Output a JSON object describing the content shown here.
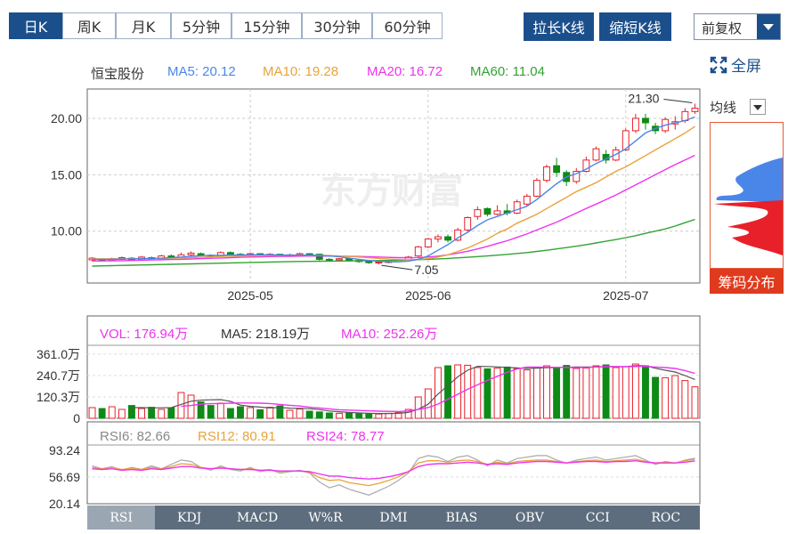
{
  "toolbar": {
    "periods": [
      "日K",
      "周K",
      "月K",
      "5分钟",
      "15分钟",
      "30分钟",
      "60分钟"
    ],
    "active_period": "日K",
    "stretch_label": "拉长K线",
    "shrink_label": "缩短K线",
    "adjust_selected": "前复权",
    "fullscreen_label": "全屏"
  },
  "legend": {
    "name": "恒宝股份",
    "ma5": "MA5: 20.12",
    "ma10": "MA10: 19.28",
    "ma20": "MA20: 16.72",
    "ma60": "MA60: 11.04"
  },
  "side": {
    "avg_line_label": "均线",
    "chip_button_label": "筹码分布"
  },
  "colors": {
    "up": "#e8202a",
    "down": "#0e8a16",
    "ma5": "#4a86e8",
    "ma10": "#e8a33a",
    "ma20": "#ee33ee",
    "ma60": "#33a333",
    "brand": "#1b4f8c"
  },
  "chart_data": [
    {
      "type": "candlestick",
      "y_ticks": [
        "20.00",
        "15.00",
        "10.00"
      ],
      "y_tick_values": [
        20,
        15,
        10
      ],
      "ylim": [
        5.4,
        22.6
      ],
      "x_ticks": [
        "2025-05",
        "2025-06",
        "2025-07"
      ],
      "x_tick_index": [
        16,
        34,
        54
      ],
      "annotations": {
        "high_label": "21.30",
        "high_index": 61,
        "low_label": "7.05",
        "low_index": 29
      },
      "candles": [
        [
          7.45,
          7.6,
          7.35,
          7.7
        ],
        [
          7.5,
          7.4,
          7.3,
          7.6
        ],
        [
          7.4,
          7.55,
          7.35,
          7.65
        ],
        [
          7.5,
          7.65,
          7.45,
          7.75
        ],
        [
          7.6,
          7.45,
          7.4,
          7.7
        ],
        [
          7.45,
          7.7,
          7.4,
          7.8
        ],
        [
          7.65,
          7.55,
          7.5,
          7.75
        ],
        [
          7.55,
          7.8,
          7.5,
          7.9
        ],
        [
          7.8,
          7.65,
          7.6,
          7.95
        ],
        [
          7.65,
          7.9,
          7.6,
          8.1
        ],
        [
          7.9,
          8.05,
          7.8,
          8.2
        ],
        [
          8.0,
          7.85,
          7.75,
          8.1
        ],
        [
          7.85,
          7.75,
          7.65,
          7.95
        ],
        [
          7.8,
          8.1,
          7.75,
          8.2
        ],
        [
          8.1,
          7.95,
          7.9,
          8.2
        ],
        [
          7.95,
          7.9,
          7.8,
          8.05
        ],
        [
          7.9,
          8.0,
          7.85,
          8.1
        ],
        [
          8.0,
          7.85,
          7.8,
          8.05
        ],
        [
          7.85,
          7.95,
          7.8,
          8.05
        ],
        [
          7.95,
          7.8,
          7.75,
          8.0
        ],
        [
          7.8,
          7.9,
          7.75,
          8.0
        ],
        [
          7.9,
          8.0,
          7.85,
          8.1
        ],
        [
          8.0,
          7.95,
          7.9,
          8.05
        ],
        [
          7.95,
          7.5,
          7.4,
          8.0
        ],
        [
          7.5,
          7.45,
          7.35,
          7.6
        ],
        [
          7.45,
          7.55,
          7.4,
          7.6
        ],
        [
          7.55,
          7.4,
          7.3,
          7.6
        ],
        [
          7.4,
          7.3,
          7.2,
          7.45
        ],
        [
          7.3,
          7.2,
          7.1,
          7.35
        ],
        [
          7.2,
          7.25,
          7.05,
          7.3
        ],
        [
          7.25,
          7.3,
          7.15,
          7.35
        ],
        [
          7.3,
          7.45,
          7.25,
          7.5
        ],
        [
          7.45,
          7.7,
          7.4,
          7.8
        ],
        [
          7.8,
          8.6,
          7.7,
          8.7
        ],
        [
          8.6,
          9.3,
          8.5,
          9.4
        ],
        [
          9.3,
          9.5,
          9.0,
          9.7
        ],
        [
          9.5,
          9.2,
          9.0,
          9.7
        ],
        [
          9.2,
          10.1,
          9.1,
          10.3
        ],
        [
          10.1,
          11.2,
          10.0,
          11.3
        ],
        [
          11.3,
          11.9,
          11.0,
          12.2
        ],
        [
          12.0,
          11.5,
          11.3,
          12.1
        ],
        [
          11.5,
          11.8,
          11.4,
          12.3
        ],
        [
          11.8,
          11.6,
          11.4,
          12.4
        ],
        [
          11.6,
          12.6,
          11.5,
          12.8
        ],
        [
          12.4,
          13.1,
          12.2,
          13.3
        ],
        [
          13.1,
          14.5,
          13.0,
          14.7
        ],
        [
          14.5,
          15.7,
          14.3,
          15.9
        ],
        [
          15.8,
          15.2,
          14.8,
          16.5
        ],
        [
          15.2,
          14.4,
          14.0,
          15.4
        ],
        [
          14.4,
          15.3,
          14.2,
          15.6
        ],
        [
          15.3,
          16.3,
          15.2,
          16.6
        ],
        [
          16.3,
          17.3,
          16.2,
          17.5
        ],
        [
          16.8,
          16.3,
          16.0,
          17.2
        ],
        [
          16.3,
          17.2,
          16.2,
          17.5
        ],
        [
          17.2,
          18.9,
          17.1,
          19.1
        ],
        [
          18.9,
          20.0,
          18.7,
          20.4
        ],
        [
          20.0,
          19.6,
          19.0,
          20.4
        ],
        [
          19.3,
          18.9,
          18.6,
          19.6
        ],
        [
          18.9,
          19.9,
          18.7,
          20.1
        ],
        [
          19.5,
          19.7,
          19.0,
          20.2
        ],
        [
          19.8,
          20.6,
          19.6,
          20.9
        ],
        [
          20.6,
          20.9,
          20.4,
          21.3
        ]
      ],
      "ma5": [
        7.5,
        7.5,
        7.5,
        7.52,
        7.54,
        7.56,
        7.58,
        7.6,
        7.65,
        7.7,
        7.76,
        7.82,
        7.85,
        7.86,
        7.88,
        7.88,
        7.9,
        7.9,
        7.9,
        7.88,
        7.87,
        7.87,
        7.88,
        7.85,
        7.8,
        7.72,
        7.6,
        7.5,
        7.4,
        7.32,
        7.28,
        7.28,
        7.34,
        7.5,
        7.8,
        8.3,
        8.8,
        9.4,
        9.9,
        10.5,
        11.0,
        11.3,
        11.6,
        11.9,
        12.2,
        12.8,
        13.5,
        14.2,
        14.8,
        15.1,
        15.5,
        16.0,
        16.4,
        16.8,
        17.3,
        18.0,
        18.7,
        19.1,
        19.4,
        19.6,
        19.8,
        20.12
      ],
      "ma10": [
        7.55,
        7.55,
        7.55,
        7.55,
        7.56,
        7.56,
        7.57,
        7.58,
        7.6,
        7.62,
        7.65,
        7.68,
        7.72,
        7.75,
        7.78,
        7.8,
        7.82,
        7.84,
        7.85,
        7.86,
        7.86,
        7.86,
        7.86,
        7.85,
        7.83,
        7.8,
        7.76,
        7.7,
        7.64,
        7.58,
        7.52,
        7.48,
        7.45,
        7.48,
        7.56,
        7.7,
        7.9,
        8.2,
        8.5,
        8.9,
        9.3,
        9.8,
        10.2,
        10.7,
        11.1,
        11.5,
        12.0,
        12.5,
        13.0,
        13.5,
        13.9,
        14.3,
        14.8,
        15.3,
        15.7,
        16.2,
        16.7,
        17.2,
        17.7,
        18.2,
        18.7,
        19.28
      ],
      "ma20": [
        7.35,
        7.36,
        7.37,
        7.38,
        7.4,
        7.42,
        7.44,
        7.46,
        7.48,
        7.5,
        7.53,
        7.56,
        7.59,
        7.62,
        7.65,
        7.68,
        7.7,
        7.72,
        7.74,
        7.76,
        7.77,
        7.78,
        7.79,
        7.79,
        7.79,
        7.78,
        7.77,
        7.75,
        7.73,
        7.7,
        7.67,
        7.65,
        7.64,
        7.66,
        7.7,
        7.78,
        7.9,
        8.05,
        8.22,
        8.42,
        8.65,
        8.9,
        9.15,
        9.45,
        9.75,
        10.1,
        10.45,
        10.8,
        11.2,
        11.6,
        12.0,
        12.4,
        12.8,
        13.2,
        13.65,
        14.1,
        14.55,
        15.0,
        15.45,
        15.9,
        16.3,
        16.72
      ],
      "ma60": [
        6.9,
        6.92,
        6.94,
        6.96,
        6.98,
        7.0,
        7.02,
        7.04,
        7.06,
        7.08,
        7.1,
        7.12,
        7.14,
        7.16,
        7.18,
        7.2,
        7.22,
        7.24,
        7.26,
        7.28,
        7.3,
        7.31,
        7.32,
        7.33,
        7.34,
        7.35,
        7.36,
        7.37,
        7.38,
        7.39,
        7.4,
        7.42,
        7.44,
        7.47,
        7.5,
        7.54,
        7.58,
        7.63,
        7.68,
        7.74,
        7.8,
        7.87,
        7.94,
        8.02,
        8.1,
        8.2,
        8.3,
        8.42,
        8.54,
        8.67,
        8.8,
        8.95,
        9.1,
        9.25,
        9.42,
        9.6,
        9.8,
        10.0,
        10.2,
        10.45,
        10.75,
        11.04
      ]
    },
    {
      "type": "bar",
      "legend": {
        "vol": "VOL: 176.94万",
        "ma5": "MA5: 218.19万",
        "ma10": "MA10: 252.26万"
      },
      "y_ticks": [
        "361.0万",
        "240.7万",
        "120.3万",
        "0"
      ],
      "y_tick_values": [
        361.0,
        240.7,
        120.3,
        0
      ],
      "ylim": [
        0,
        400
      ],
      "values": [
        60,
        55,
        65,
        50,
        72,
        55,
        62,
        50,
        60,
        145,
        130,
        92,
        72,
        85,
        55,
        65,
        60,
        48,
        62,
        70,
        45,
        52,
        40,
        36,
        30,
        28,
        30,
        27,
        26,
        24,
        28,
        32,
        50,
        120,
        165,
        285,
        295,
        300,
        298,
        285,
        278,
        282,
        288,
        280,
        272,
        283,
        295,
        285,
        297,
        280,
        282,
        295,
        300,
        285,
        290,
        305,
        295,
        230,
        228,
        240,
        212,
        176.94
      ],
      "ma5": [
        null,
        null,
        null,
        null,
        60,
        60,
        59,
        59,
        60,
        78,
        96,
        102,
        104,
        105,
        95,
        74,
        67,
        63,
        58,
        61,
        57,
        56,
        54,
        49,
        41,
        37,
        33,
        30,
        28,
        27,
        27,
        28,
        33,
        51,
        79,
        136,
        184,
        233,
        270,
        292,
        291,
        289,
        286,
        283,
        280,
        282,
        284,
        285,
        287,
        288,
        288,
        288,
        292,
        290,
        290,
        296,
        295,
        281,
        270,
        260,
        240,
        218.19
      ],
      "ma10": [
        null,
        null,
        null,
        null,
        null,
        null,
        null,
        null,
        null,
        67,
        72,
        79,
        82,
        83,
        85,
        86,
        86,
        85,
        83,
        78,
        73,
        69,
        62,
        58,
        53,
        48,
        46,
        44,
        42,
        40,
        39,
        38,
        41,
        50,
        60,
        80,
        107,
        135,
        163,
        188,
        213,
        236,
        258,
        277,
        288,
        288,
        287,
        286,
        286,
        285,
        286,
        288,
        290,
        290,
        290,
        291,
        292,
        288,
        285,
        280,
        268,
        252.26
      ]
    },
    {
      "type": "line",
      "legend": {
        "rsi6": "RSI6: 82.66",
        "rsi12": "RSI12: 80.91",
        "rsi24": "RSI24: 78.77"
      },
      "y_ticks": [
        "93.24",
        "56.69",
        "20.14"
      ],
      "y_tick_values": [
        93.24,
        56.69,
        20.14
      ],
      "ylim": [
        20.14,
        93.24
      ],
      "rsi6": [
        72,
        68,
        71,
        66,
        70,
        67,
        72,
        68,
        74,
        80,
        78,
        70,
        66,
        72,
        67,
        65,
        70,
        64,
        67,
        62,
        64,
        66,
        62,
        50,
        42,
        46,
        40,
        36,
        32,
        38,
        44,
        52,
        62,
        82,
        86,
        84,
        78,
        84,
        86,
        80,
        72,
        80,
        76,
        82,
        84,
        86,
        86,
        80,
        76,
        80,
        82,
        84,
        80,
        82,
        84,
        86,
        80,
        74,
        78,
        76,
        80,
        82.66
      ],
      "rsi12": [
        70,
        68,
        70,
        67,
        69,
        67,
        70,
        68,
        71,
        75,
        74,
        70,
        68,
        70,
        68,
        67,
        68,
        66,
        67,
        64,
        65,
        65,
        63,
        56,
        52,
        53,
        49,
        47,
        45,
        48,
        52,
        57,
        64,
        76,
        79,
        79,
        77,
        79,
        80,
        78,
        74,
        77,
        75,
        78,
        79,
        80,
        80,
        78,
        76,
        78,
        79,
        80,
        78,
        79,
        80,
        81,
        78,
        76,
        77,
        76,
        79,
        80.91
      ],
      "rsi24": [
        68,
        67,
        68,
        66,
        67,
        66,
        68,
        67,
        69,
        71,
        71,
        69,
        68,
        69,
        68,
        67,
        67,
        66,
        66,
        65,
        65,
        65,
        64,
        61,
        58,
        58,
        56,
        55,
        54,
        55,
        57,
        60,
        64,
        71,
        74,
        75,
        75,
        76,
        77,
        76,
        74,
        75,
        74,
        76,
        77,
        78,
        78,
        77,
        76,
        77,
        78,
        78,
        77,
        78,
        78,
        79,
        77,
        76,
        76,
        76,
        77,
        78.77
      ]
    }
  ],
  "indicator_tabs": [
    "RSI",
    "KDJ",
    "MACD",
    "W%R",
    "DMI",
    "BIAS",
    "OBV",
    "CCI",
    "ROC"
  ],
  "active_indicator": "RSI"
}
